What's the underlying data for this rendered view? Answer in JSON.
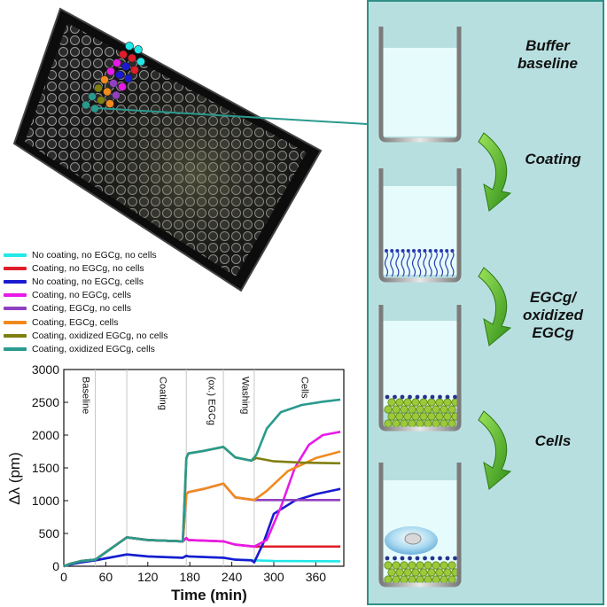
{
  "legend": [
    {
      "label": "No coating, no EGCg, no cells",
      "color": "#22e8e8"
    },
    {
      "label": "Coating, no EGCg, no cells",
      "color": "#e01e2a"
    },
    {
      "label": "No coating, no EGCg, cells",
      "color": "#1a1ad0"
    },
    {
      "label": "Coating, no EGCg, cells",
      "color": "#e81ae8"
    },
    {
      "label": "Coating, EGCg, no cells",
      "color": "#9040c0"
    },
    {
      "label": "Coating, EGCg, cells",
      "color": "#f08a1e"
    },
    {
      "label": "Coating, oxidized EGCg, no cells",
      "color": "#7f7f10"
    },
    {
      "label": "Coating, oxidized EGCg, cells",
      "color": "#2a9a8e"
    }
  ],
  "stages": [
    {
      "label": "Buffer baseline"
    },
    {
      "label": "Coating"
    },
    {
      "label": "EGCg/ oxidized EGCg"
    },
    {
      "label": "Cells"
    }
  ],
  "chart_data": {
    "type": "line",
    "xlabel": "Time (min)",
    "ylabel": "Δλ (pm)",
    "xlim": [
      0,
      400
    ],
    "ylim": [
      0,
      3000
    ],
    "xticks": [
      0,
      60,
      120,
      180,
      240,
      300,
      360
    ],
    "yticks": [
      0,
      500,
      1000,
      1500,
      2000,
      2500,
      3000
    ],
    "phase_lines": [
      45,
      90,
      175,
      228,
      272
    ],
    "phases": [
      {
        "label": "Baseline",
        "x": 22
      },
      {
        "label": "Coating",
        "x": 132
      },
      {
        "label": "(ox.) EGCg",
        "x": 202
      },
      {
        "label": "Washing",
        "x": 250
      },
      {
        "label": "Cells",
        "x": 335
      }
    ],
    "series": [
      {
        "name": "No coating, no EGCg, no cells",
        "color": "#22e8e8",
        "x": [
          0,
          10,
          25,
          45,
          90,
          120,
          170,
          175,
          178,
          228,
          245,
          272,
          300,
          395
        ],
        "y": [
          0,
          30,
          60,
          90,
          180,
          150,
          130,
          160,
          150,
          130,
          100,
          90,
          80,
          75
        ]
      },
      {
        "name": "Coating, no EGCg, no cells",
        "color": "#e01e2a",
        "x": [
          0,
          10,
          25,
          45,
          90,
          120,
          170,
          175,
          178,
          228,
          245,
          272,
          300,
          395
        ],
        "y": [
          0,
          40,
          80,
          100,
          440,
          400,
          380,
          430,
          400,
          380,
          330,
          300,
          300,
          300
        ]
      },
      {
        "name": "No coating, no EGCg, cells",
        "color": "#1a1ad0",
        "x": [
          0,
          10,
          25,
          45,
          90,
          120,
          170,
          175,
          178,
          228,
          245,
          268,
          272,
          285,
          300,
          330,
          360,
          395
        ],
        "y": [
          0,
          30,
          60,
          90,
          180,
          150,
          130,
          160,
          150,
          130,
          100,
          90,
          60,
          350,
          800,
          1000,
          1100,
          1180
        ]
      },
      {
        "name": "Coating, no EGCg, cells",
        "color": "#e81ae8",
        "x": [
          0,
          10,
          25,
          45,
          90,
          120,
          170,
          175,
          178,
          228,
          245,
          272,
          290,
          310,
          330,
          350,
          370,
          395
        ],
        "y": [
          0,
          40,
          80,
          100,
          440,
          400,
          380,
          430,
          400,
          380,
          330,
          300,
          400,
          900,
          1500,
          1850,
          2000,
          2050
        ]
      },
      {
        "name": "Coating, EGCg, no cells",
        "color": "#9040c0",
        "x": [
          0,
          10,
          25,
          45,
          90,
          120,
          170,
          175,
          178,
          200,
          228,
          245,
          272,
          300,
          395
        ],
        "y": [
          0,
          40,
          80,
          100,
          440,
          400,
          380,
          1100,
          1130,
          1180,
          1260,
          1050,
          1010,
          1010,
          1010
        ]
      },
      {
        "name": "Coating, EGCg, cells",
        "color": "#f08a1e",
        "x": [
          0,
          10,
          25,
          45,
          90,
          120,
          170,
          175,
          178,
          200,
          228,
          245,
          272,
          290,
          320,
          360,
          395
        ],
        "y": [
          0,
          40,
          80,
          100,
          440,
          400,
          380,
          1100,
          1130,
          1180,
          1260,
          1050,
          1010,
          1150,
          1450,
          1650,
          1750
        ]
      },
      {
        "name": "Coating, oxidized EGCg, no cells",
        "color": "#7f7f10",
        "x": [
          0,
          10,
          25,
          45,
          90,
          120,
          170,
          175,
          178,
          200,
          228,
          245,
          268,
          275,
          300,
          340,
          395
        ],
        "y": [
          0,
          40,
          80,
          100,
          440,
          400,
          380,
          1650,
          1720,
          1760,
          1820,
          1660,
          1610,
          1650,
          1600,
          1580,
          1570
        ]
      },
      {
        "name": "Coating, oxidized EGCg, cells",
        "color": "#2a9a8e",
        "x": [
          0,
          10,
          25,
          45,
          90,
          120,
          170,
          175,
          178,
          200,
          228,
          245,
          268,
          275,
          290,
          310,
          340,
          370,
          395
        ],
        "y": [
          0,
          40,
          80,
          100,
          440,
          400,
          380,
          1650,
          1720,
          1760,
          1820,
          1660,
          1610,
          1700,
          2100,
          2350,
          2460,
          2510,
          2540
        ]
      }
    ]
  }
}
